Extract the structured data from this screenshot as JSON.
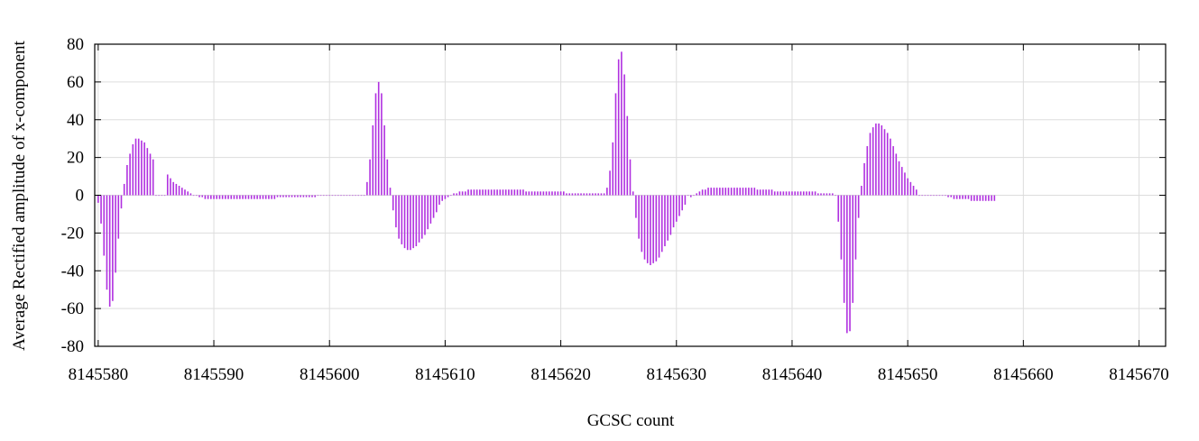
{
  "chart_data": {
    "type": "bar",
    "title": "",
    "xlabel": "GCSC count",
    "ylabel": "Average Rectified amplitude of x-component",
    "xlim": [
      8145579.7,
      8145672.3
    ],
    "ylim": [
      -80,
      80
    ],
    "x_ticks": [
      8145580,
      8145590,
      8145600,
      8145610,
      8145620,
      8145630,
      8145640,
      8145650,
      8145660,
      8145670
    ],
    "y_ticks": [
      -80,
      -60,
      -40,
      -20,
      0,
      20,
      40,
      60,
      80
    ],
    "grid": true,
    "bar_color": "#b030e0",
    "x_start": 8145580,
    "x_step": 0.25,
    "values": [
      -4,
      -15,
      -32,
      -50,
      -59,
      -56,
      -41,
      -23,
      -7,
      6,
      16,
      22,
      27,
      30,
      30,
      29,
      28,
      25,
      22,
      19,
      0,
      0,
      0,
      0,
      11,
      9,
      7,
      6,
      5,
      4,
      3,
      2,
      1,
      0,
      0,
      -1,
      -1,
      -2,
      -2,
      -2,
      -2,
      -2,
      -2,
      -2,
      -2,
      -2,
      -2,
      -2,
      -2,
      -2,
      -2,
      -2,
      -2,
      -2,
      -2,
      -2,
      -2,
      -2,
      -2,
      -2,
      -2,
      -2,
      -1,
      -1,
      -1,
      -1,
      -1,
      -1,
      -1,
      -1,
      -1,
      -1,
      -1,
      -1,
      -1,
      -1,
      0,
      0,
      0,
      0,
      0,
      0,
      0,
      0,
      0,
      0,
      0,
      0,
      0,
      0,
      0,
      0,
      0,
      7,
      19,
      37,
      54,
      60,
      54,
      37,
      19,
      4,
      -8,
      -17,
      -23,
      -26,
      -28,
      -29,
      -29,
      -28,
      -27,
      -25,
      -23,
      -21,
      -18,
      -15,
      -12,
      -9,
      -5,
      -3,
      -2,
      -1,
      0,
      1,
      1,
      2,
      2,
      2,
      3,
      3,
      3,
      3,
      3,
      3,
      3,
      3,
      3,
      3,
      3,
      3,
      3,
      3,
      3,
      3,
      3,
      3,
      3,
      3,
      2,
      2,
      2,
      2,
      2,
      2,
      2,
      2,
      2,
      2,
      2,
      2,
      2,
      2,
      1,
      1,
      1,
      1,
      1,
      1,
      1,
      1,
      1,
      1,
      1,
      1,
      1,
      1,
      4,
      13,
      28,
      54,
      72,
      76,
      64,
      42,
      19,
      2,
      -12,
      -23,
      -30,
      -34,
      -36,
      -37,
      -36,
      -35,
      -33,
      -30,
      -27,
      -24,
      -21,
      -17,
      -14,
      -11,
      -8,
      -5,
      0,
      -1,
      0,
      1,
      2,
      3,
      3,
      4,
      4,
      4,
      4,
      4,
      4,
      4,
      4,
      4,
      4,
      4,
      4,
      4,
      4,
      4,
      4,
      4,
      3,
      3,
      3,
      3,
      3,
      3,
      2,
      2,
      2,
      2,
      2,
      2,
      2,
      2,
      2,
      2,
      2,
      2,
      2,
      2,
      2,
      1,
      1,
      1,
      1,
      1,
      1,
      0,
      -14,
      -34,
      -57,
      -73,
      -72,
      -57,
      -34,
      -12,
      5,
      17,
      26,
      33,
      36,
      38,
      38,
      37,
      35,
      33,
      30,
      26,
      22,
      18,
      15,
      12,
      9,
      7,
      5,
      3,
      0,
      0,
      0,
      0,
      0,
      0,
      0,
      0,
      0,
      0,
      -1,
      -1,
      -2,
      -2,
      -2,
      -2,
      -2,
      -2,
      -3,
      -3,
      -3,
      -3,
      -3,
      -3,
      -3,
      -3,
      -3
    ]
  }
}
